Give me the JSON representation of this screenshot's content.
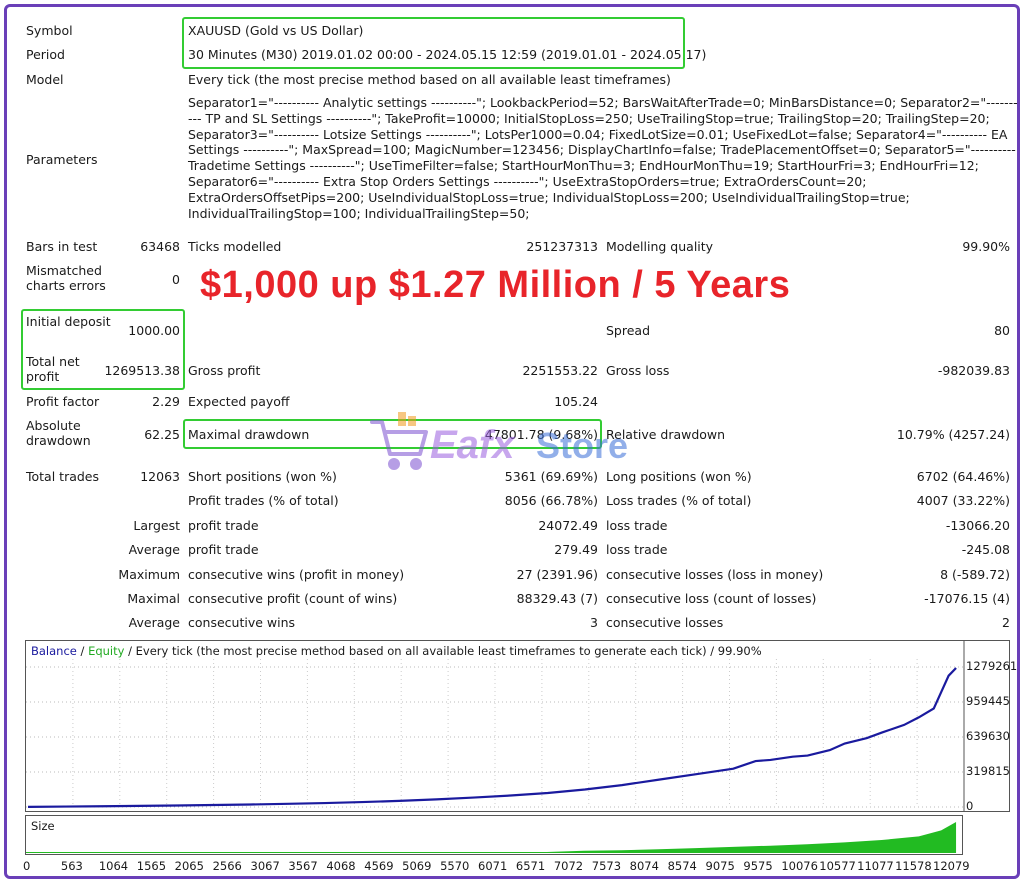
{
  "report": {
    "symbol_label": "Symbol",
    "symbol_value": "XAUUSD (Gold vs US Dollar)",
    "period_label": "Period",
    "period_value": "30 Minutes (M30) 2019.01.02 00:00 - 2024.05.15 12:59 (2019.01.01 - 2024.05.17)",
    "model_label": "Model",
    "model_value": "Every tick (the most precise method based on all available least timeframes)",
    "parameters_label": "Parameters",
    "parameters_value": "Separator1=\"---------- Analytic settings ----------\"; LookbackPeriod=52; BarsWaitAfterTrade=0; MinBarsDistance=0; Separator2=\"---------- TP and SL Settings ----------\"; TakeProfit=10000; InitialStopLoss=250; UseTrailingStop=true; TrailingStop=20; TrailingStep=20; Separator3=\"---------- Lotsize Settings ----------\"; LotsPer1000=0.04; FixedLotSize=0.01; UseFixedLot=false; Separator4=\"---------- EA Settings ----------\"; MaxSpread=100; MagicNumber=123456; DisplayChartInfo=false; TradePlacementOffset=0; Separator5=\"---------- Tradetime Settings ----------\"; UseTimeFilter=false; StartHourMonThu=3; EndHourMonThu=19; StartHourFri=3; EndHourFri=12; Separator6=\"---------- Extra Stop Orders Settings ----------\"; UseExtraStopOrders=true; ExtraOrdersCount=20; ExtraOrdersOffsetPips=200; UseIndividualStopLoss=true; IndividualStopLoss=200; UseIndividualTrailingStop=true; IndividualTrailingStop=100; IndividualTrailingStep=50;"
  },
  "stats": {
    "bars_in_test_label": "Bars in test",
    "bars_in_test_value": "63468",
    "ticks_modelled_label": "Ticks modelled",
    "ticks_modelled_value": "251237313",
    "modelling_quality_label": "Modelling quality",
    "modelling_quality_value": "99.90%",
    "mismatched_label": "Mismatched charts errors",
    "mismatched_value": "0",
    "initial_deposit_label": "Initial deposit",
    "initial_deposit_value": "1000.00",
    "spread_label": "Spread",
    "spread_value": "80",
    "total_net_profit_label": "Total net profit",
    "total_net_profit_value": "1269513.38",
    "gross_profit_label": "Gross profit",
    "gross_profit_value": "2251553.22",
    "gross_loss_label": "Gross loss",
    "gross_loss_value": "-982039.83",
    "profit_factor_label": "Profit factor",
    "profit_factor_value": "2.29",
    "expected_payoff_label": "Expected payoff",
    "expected_payoff_value": "105.24",
    "absolute_drawdown_label": "Absolute drawdown",
    "absolute_drawdown_value": "62.25",
    "maximal_drawdown_label": "Maximal drawdown",
    "maximal_drawdown_value": "47801.78 (9.68%)",
    "relative_drawdown_label": "Relative drawdown",
    "relative_drawdown_value": "10.79% (4257.24)",
    "total_trades_label": "Total trades",
    "total_trades_value": "12063",
    "short_positions_label": "Short positions (won %)",
    "short_positions_value": "5361 (69.69%)",
    "long_positions_label": "Long positions (won %)",
    "long_positions_value": "6702 (64.46%)",
    "profit_trades_label": "Profit trades (% of total)",
    "profit_trades_value": "8056 (66.78%)",
    "loss_trades_label": "Loss trades (% of total)",
    "loss_trades_value": "4007 (33.22%)",
    "largest_label": "Largest",
    "largest_profit_label": "profit trade",
    "largest_profit_value": "24072.49",
    "largest_loss_label": "loss trade",
    "largest_loss_value": "-13066.20",
    "average_label": "Average",
    "average_profit_label": "profit trade",
    "average_profit_value": "279.49",
    "average_loss_label": "loss trade",
    "average_loss_value": "-245.08",
    "maximum_label": "Maximum",
    "max_consec_wins_label": "consecutive wins (profit in money)",
    "max_consec_wins_value": "27 (2391.96)",
    "max_consec_losses_label": "consecutive losses (loss in money)",
    "max_consec_losses_value": "8 (-589.72)",
    "maximal_label": "Maximal",
    "maximal_consec_profit_label": "consecutive profit (count of wins)",
    "maximal_consec_profit_value": "88329.43 (7)",
    "maximal_consec_loss_label": "consecutive loss (count of losses)",
    "maximal_consec_loss_value": "-17076.15 (4)",
    "average2_label": "Average",
    "avg_consec_wins_label": "consecutive wins",
    "avg_consec_wins_value": "3",
    "avg_consec_losses_label": "consecutive losses",
    "avg_consec_losses_value": "2"
  },
  "overlay": {
    "headline": "$1,000 up $1.27 Million / 5 Years",
    "watermark_text_a": "Eafx",
    "watermark_text_b": "Store"
  },
  "chart_data": [
    {
      "type": "line",
      "caption_balance": "Balance",
      "caption_sep1": " / ",
      "caption_equity": "Equity",
      "caption_rest": " / Every tick (the most precise method based on all available least timeframes to generate each tick) / 99.90%",
      "yticks": [
        "1279261",
        "959445",
        "639630",
        "319815",
        "0"
      ],
      "ylim": [
        0,
        1279261
      ],
      "xlim": [
        0,
        12580
      ],
      "series": [
        {
          "name": "Balance",
          "color": "#1a1a9e",
          "x": [
            0,
            500,
            1000,
            1500,
            2000,
            2500,
            3000,
            3500,
            4000,
            4500,
            5000,
            5500,
            6000,
            6500,
            7000,
            7500,
            8000,
            8500,
            9000,
            9500,
            9800,
            10000,
            10300,
            10500,
            10800,
            11000,
            11300,
            11500,
            11800,
            12000,
            12200,
            12300,
            12400,
            12500
          ],
          "values": [
            1000,
            4000,
            7000,
            10000,
            14000,
            18000,
            23000,
            29000,
            36000,
            45000,
            56000,
            70000,
            86000,
            105000,
            128000,
            160000,
            200000,
            250000,
            300000,
            350000,
            420000,
            430000,
            460000,
            470000,
            520000,
            580000,
            630000,
            680000,
            750000,
            820000,
            900000,
            1050000,
            1200000,
            1270000
          ]
        }
      ]
    },
    {
      "type": "area",
      "label": "Size",
      "color": "#22bb22",
      "xticks": [
        "0",
        "563",
        "1064",
        "1565",
        "2065",
        "2566",
        "3067",
        "3567",
        "4068",
        "4569",
        "5069",
        "5570",
        "6071",
        "6571",
        "7072",
        "7573",
        "8074",
        "8574",
        "9075",
        "9575",
        "10076",
        "10577",
        "11077",
        "11578",
        "12079"
      ],
      "x": [
        0,
        7000,
        7500,
        8000,
        8500,
        9000,
        9500,
        10000,
        10500,
        11000,
        11500,
        12000,
        12300,
        12500
      ],
      "values": [
        0,
        0,
        0.04,
        0.06,
        0.09,
        0.13,
        0.17,
        0.21,
        0.26,
        0.32,
        0.4,
        0.52,
        0.72,
        1.0
      ]
    }
  ]
}
